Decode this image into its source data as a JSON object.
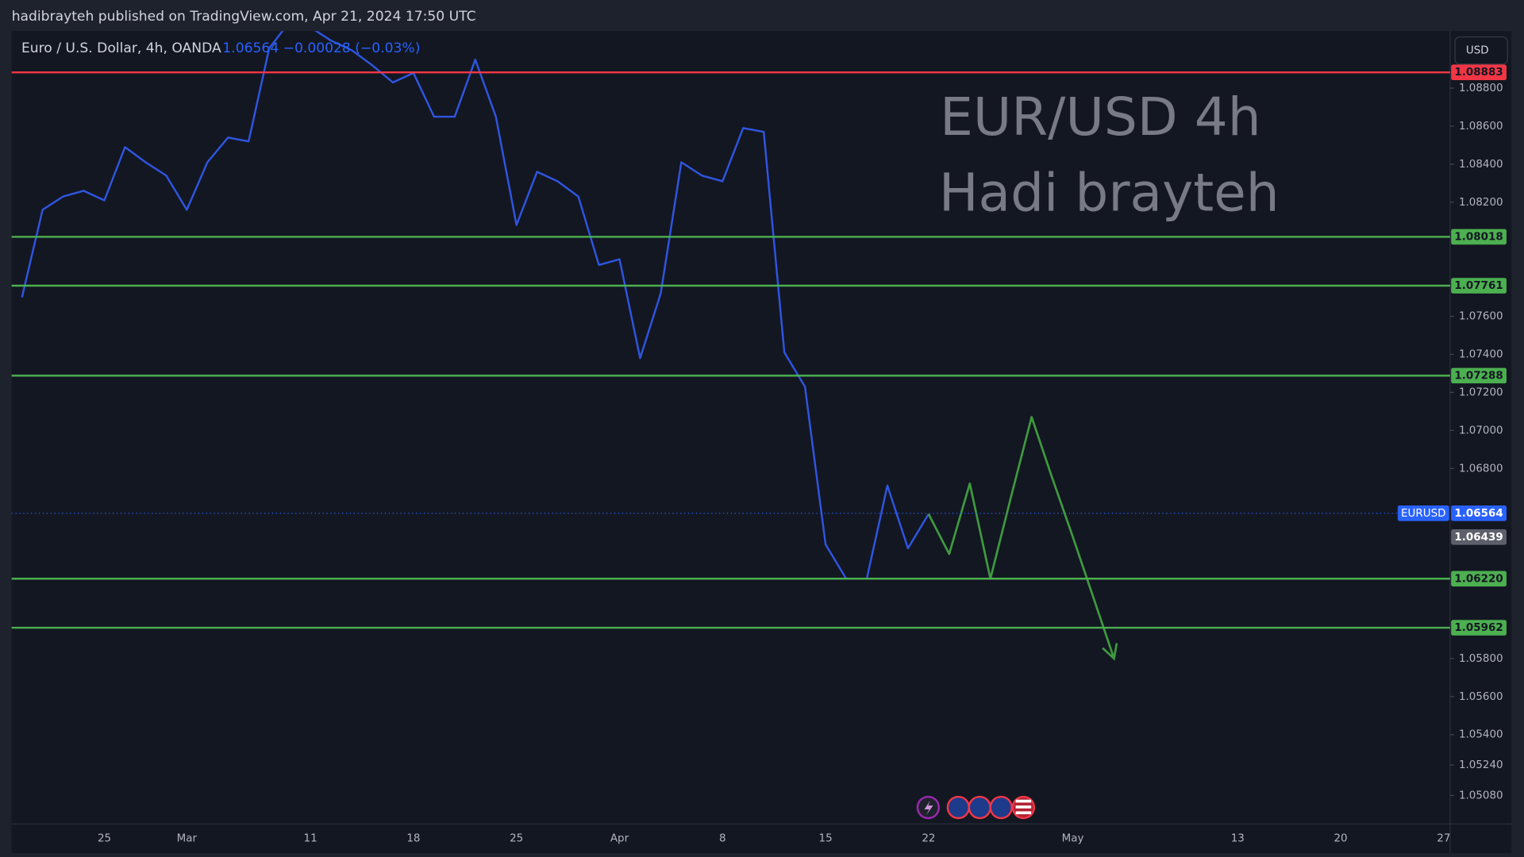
{
  "header": {
    "publisher": "hadibrayteh published on TradingView.com, Apr 21, 2024 17:50 UTC",
    "button": "USD"
  },
  "chart_data": {
    "type": "line",
    "title": "EUR/USD 4h",
    "subtitle": "Hadi brayteh",
    "symbol_info": "Euro / U.S. Dollar, 4h, OANDA",
    "quote": "1.06564 −0.00028 (−0.03%)",
    "categories": [
      null,
      null,
      null,
      null,
      "25",
      null,
      null,
      null,
      "Mar",
      null,
      null,
      null,
      null,
      null,
      "11",
      null,
      null,
      null,
      null,
      "18",
      null,
      null,
      null,
      null,
      "25",
      null,
      null,
      null,
      null,
      "Apr",
      null,
      null,
      null,
      null,
      "8",
      null,
      null,
      null,
      null,
      "15",
      null,
      null,
      null,
      null,
      "22",
      null,
      null,
      null,
      null,
      null,
      null,
      "May",
      null,
      null,
      null,
      null,
      null,
      null,
      null,
      "13",
      null,
      null,
      null,
      null,
      "20",
      null,
      null,
      null,
      null,
      "27"
    ],
    "series": [
      {
        "name": "EURUSD",
        "color": "#2f55e0",
        "values": [
          1.077,
          1.0816,
          1.0823,
          1.0826,
          1.0821,
          1.0849,
          1.0841,
          1.0834,
          1.0816,
          1.0841,
          1.0854,
          1.0852,
          1.0901,
          1.0915,
          1.0912,
          1.0905,
          1.09,
          1.0892,
          1.0883,
          1.0888,
          1.0865,
          1.0865,
          1.0895,
          1.0865,
          1.0808,
          1.0836,
          1.0831,
          1.0823,
          1.0787,
          1.079,
          1.0738,
          1.0772,
          1.0841,
          1.0834,
          1.0831,
          1.0859,
          1.0857,
          1.0741,
          1.0723,
          1.064,
          1.0622,
          1.0622,
          1.0671,
          1.0638,
          1.0656,
          null,
          null,
          null,
          null,
          null,
          null,
          null,
          null,
          null,
          null,
          null,
          null,
          null,
          null,
          null,
          null,
          null,
          null,
          null,
          null,
          null,
          null,
          null,
          null,
          null
        ]
      },
      {
        "color": "#3f9a3f",
        "values": [
          null,
          null,
          null,
          null,
          null,
          null,
          null,
          null,
          null,
          null,
          null,
          null,
          null,
          null,
          null,
          null,
          null,
          null,
          null,
          null,
          null,
          null,
          null,
          null,
          null,
          null,
          null,
          null,
          null,
          null,
          null,
          null,
          null,
          null,
          null,
          null,
          null,
          null,
          null,
          null,
          null,
          null,
          null,
          null,
          1.0656,
          1.0635,
          1.0672,
          1.0622,
          1.0665,
          1.0707,
          1.0675,
          1.0644,
          1.0612,
          1.058,
          null,
          null,
          null,
          null,
          null,
          null,
          null,
          null,
          null,
          null,
          null,
          null,
          null,
          null,
          null,
          null
        ]
      }
    ],
    "ylim": [
      1.0493,
      1.091
    ],
    "yticks": [
      {
        "value": 1.088,
        "label": "1.08800"
      },
      {
        "value": 1.086,
        "label": "1.08600"
      },
      {
        "value": 1.084,
        "label": "1.08400"
      },
      {
        "value": 1.082,
        "label": "1.08200"
      },
      {
        "value": 1.076,
        "label": "1.07600"
      },
      {
        "value": 1.074,
        "label": "1.07400"
      },
      {
        "value": 1.072,
        "label": "1.07200"
      },
      {
        "value": 1.07,
        "label": "1.07000"
      },
      {
        "value": 1.068,
        "label": "1.06800"
      },
      {
        "value": 1.058,
        "label": "1.05800"
      },
      {
        "value": 1.056,
        "label": "1.05600"
      },
      {
        "value": 1.054,
        "label": "1.05400"
      },
      {
        "value": 1.0524,
        "label": "1.05240"
      },
      {
        "value": 1.0508,
        "label": "1.05080"
      }
    ],
    "levels": [
      {
        "value": 1.08883,
        "label": "1.08883",
        "color": "#f23645"
      },
      {
        "value": 1.08018,
        "label": "1.08018",
        "color": "#4caf50"
      },
      {
        "value": 1.07761,
        "label": "1.07761",
        "color": "#4caf50"
      },
      {
        "value": 1.07288,
        "label": "1.07288",
        "color": "#4caf50"
      },
      {
        "value": 1.0622,
        "label": "1.06220",
        "color": "#4caf50"
      },
      {
        "value": 1.05962,
        "label": "1.05962",
        "color": "#4caf50"
      }
    ],
    "last_price": {
      "symbol": "EURUSD",
      "value": 1.06564,
      "color": "#2962ff"
    },
    "prev_price": {
      "value": 1.06439,
      "color": "#5d606b"
    }
  }
}
